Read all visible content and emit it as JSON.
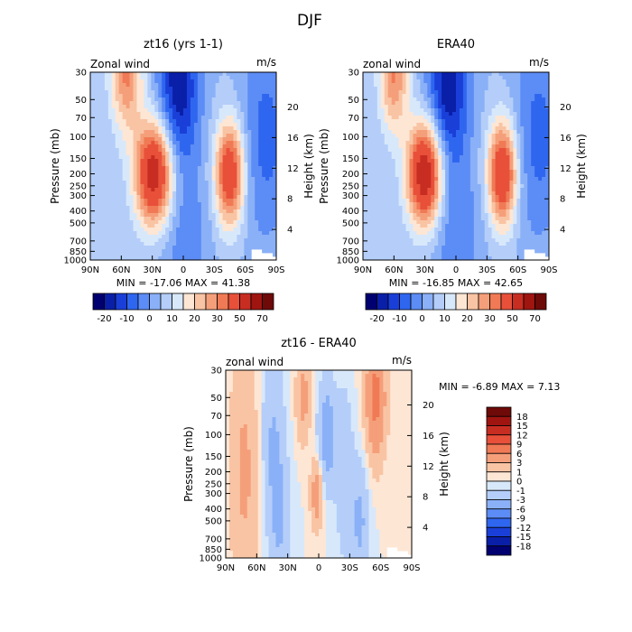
{
  "figure_title": "DJF",
  "colors": {
    "ramp_top": [
      "#000070",
      "#0a1fa8",
      "#1a3fd8",
      "#2f66f0",
      "#5c8cf5",
      "#8ab0f7",
      "#b4cef9",
      "#d8e8fb",
      "#fde6d4",
      "#f9c4a4",
      "#f59f7a",
      "#f07a55",
      "#e8503a",
      "#c82d22",
      "#a01510",
      "#6e0a08"
    ],
    "ramp_diff": [
      "#000070",
      "#0a1fa8",
      "#1a3fd8",
      "#2f66f0",
      "#5c8cf5",
      "#8ab0f7",
      "#b4cef9",
      "#d8e8fb",
      "#fde6d4",
      "#f9c4a4",
      "#f59f7a",
      "#f07a55",
      "#e8503a",
      "#c82d22",
      "#a01510",
      "#6e0a08"
    ]
  },
  "chart_data": [
    {
      "type": "heatmap",
      "id": "panel1",
      "title": "zt16 (yrs 1-1)",
      "left_label": "Zonal wind",
      "right_label": "m/s",
      "ylabel": "Pressure (mb)",
      "ylabel2": "Height (km)",
      "xticks": [
        "90N",
        "60N",
        "30N",
        "0",
        "30S",
        "60S",
        "90S"
      ],
      "xlim": [
        90,
        -90
      ],
      "yticks": [
        "30",
        "50",
        "70",
        "100",
        "150",
        "200",
        "250",
        "300",
        "400",
        "500",
        "700",
        "850",
        "1000"
      ],
      "ytick_values": [
        30,
        50,
        70,
        100,
        150,
        200,
        250,
        300,
        400,
        500,
        700,
        850,
        1000
      ],
      "ylim": [
        1000,
        30
      ],
      "height_ticks": [
        "4",
        "8",
        "12",
        "16",
        "20"
      ],
      "height_tick_values": [
        4,
        8,
        12,
        16,
        20
      ],
      "min_max": "MIN =  -17.06   MAX =  41.38",
      "min": -17.06,
      "max": 41.38,
      "features": [
        {
          "lat": 28,
          "p": 200,
          "amp": 48,
          "slat": 13,
          "slogp": 0.3
        },
        {
          "lat": 55,
          "p": 30,
          "amp": 26,
          "slat": 11,
          "slogp": 0.35
        },
        {
          "lat": -45,
          "p": 200,
          "amp": 40,
          "slat": 10,
          "slogp": 0.3
        },
        {
          "lat": 5,
          "p": 40,
          "amp": -24,
          "slat": 14,
          "slogp": 0.45
        },
        {
          "lat": 0,
          "p": 700,
          "amp": -8,
          "slat": 18,
          "slogp": 0.5
        },
        {
          "lat": -80,
          "p": 100,
          "amp": -12,
          "slat": 18,
          "slogp": 0.6
        }
      ]
    },
    {
      "type": "heatmap",
      "id": "panel2",
      "title": "ERA40",
      "left_label": "zonal wind",
      "right_label": "m/s",
      "ylabel": "Pressure (mb)",
      "ylabel2": "Height (km)",
      "xticks": [
        "90N",
        "60N",
        "30N",
        "0",
        "30S",
        "60S",
        "90S"
      ],
      "xlim": [
        90,
        -90
      ],
      "yticks": [
        "30",
        "50",
        "70",
        "100",
        "150",
        "200",
        "250",
        "300",
        "400",
        "500",
        "700",
        "850",
        "1000"
      ],
      "ytick_values": [
        30,
        50,
        70,
        100,
        150,
        200,
        250,
        300,
        400,
        500,
        700,
        850,
        1000
      ],
      "ylim": [
        1000,
        30
      ],
      "height_ticks": [
        "4",
        "8",
        "12",
        "16",
        "20"
      ],
      "height_tick_values": [
        4,
        8,
        12,
        16,
        20
      ],
      "min_max": "MIN =  -16.85   MAX =  42.65",
      "min": -16.85,
      "max": 42.65,
      "features": [
        {
          "lat": 30,
          "p": 200,
          "amp": 50,
          "slat": 12,
          "slogp": 0.3
        },
        {
          "lat": 60,
          "p": 30,
          "amp": 26,
          "slat": 10,
          "slogp": 0.35
        },
        {
          "lat": -45,
          "p": 200,
          "amp": 42,
          "slat": 10,
          "slogp": 0.3
        },
        {
          "lat": 8,
          "p": 40,
          "amp": -24,
          "slat": 14,
          "slogp": 0.45
        },
        {
          "lat": 0,
          "p": 700,
          "amp": -9,
          "slat": 18,
          "slogp": 0.5
        },
        {
          "lat": -80,
          "p": 100,
          "amp": -12,
          "slat": 18,
          "slogp": 0.6
        }
      ]
    },
    {
      "type": "heatmap",
      "id": "diff",
      "title": "zt16 - ERA40",
      "left_label": "zonal wind",
      "right_label": "m/s",
      "ylabel": "Pressure (mb)",
      "ylabel2": "Height (km)",
      "xticks": [
        "90N",
        "60N",
        "30N",
        "0",
        "30S",
        "60S",
        "90S"
      ],
      "xlim": [
        90,
        -90
      ],
      "yticks": [
        "30",
        "50",
        "70",
        "100",
        "150",
        "200",
        "250",
        "300",
        "400",
        "500",
        "700",
        "850",
        "1000"
      ],
      "ytick_values": [
        30,
        50,
        70,
        100,
        150,
        200,
        250,
        300,
        400,
        500,
        700,
        850,
        1000
      ],
      "ylim": [
        1000,
        30
      ],
      "height_ticks": [
        "4",
        "8",
        "12",
        "16",
        "20"
      ],
      "height_tick_values": [
        4,
        8,
        12,
        16,
        20
      ],
      "min_max": "MIN =   -6.89   MAX =    7.13",
      "min": -6.89,
      "max": 7.13,
      "features": [
        {
          "lat": 72,
          "p": 200,
          "amp": 3.5,
          "slat": 10,
          "slogp": 0.7
        },
        {
          "lat": 45,
          "p": 100,
          "amp": -3,
          "slat": 8,
          "slogp": 0.5
        },
        {
          "lat": 15,
          "p": 50,
          "amp": 4,
          "slat": 5,
          "slogp": 0.25
        },
        {
          "lat": 2,
          "p": 300,
          "amp": 5,
          "slat": 4,
          "slogp": 0.2
        },
        {
          "lat": -8,
          "p": 100,
          "amp": -5,
          "slat": 6,
          "slogp": 0.3
        },
        {
          "lat": -55,
          "p": 50,
          "amp": 7,
          "slat": 7,
          "slogp": 0.35
        },
        {
          "lat": -40,
          "p": 500,
          "amp": -3.5,
          "slat": 6,
          "slogp": 0.35
        },
        {
          "lat": 38,
          "p": 500,
          "amp": -3,
          "slat": 7,
          "slogp": 0.4
        },
        {
          "lat": -25,
          "p": 200,
          "amp": -2.5,
          "slat": 6,
          "slogp": 0.5
        }
      ]
    }
  ],
  "colorbar_top": {
    "labels": [
      "-20",
      "-10",
      "0",
      "10",
      "20",
      "30",
      "50",
      "70"
    ],
    "label_boundaries": [
      1,
      3,
      5,
      7,
      9,
      11,
      13,
      15
    ],
    "segments": 16
  },
  "colorbar_diff": {
    "labels": [
      "18",
      "15",
      "12",
      "9",
      "6",
      "3",
      "1",
      "0",
      "-1",
      "-3",
      "-6",
      "-9",
      "-12",
      "-15",
      "-18"
    ],
    "segments": 16
  },
  "levels_top": [
    -25,
    -20,
    -15,
    -10,
    -5,
    0,
    5,
    10,
    15,
    20,
    25,
    30,
    40,
    50,
    60,
    70
  ],
  "levels_diff": [
    -18,
    -15,
    -12,
    -9,
    -6,
    -3,
    -1,
    0,
    1,
    3,
    6,
    9,
    12,
    15,
    18
  ]
}
